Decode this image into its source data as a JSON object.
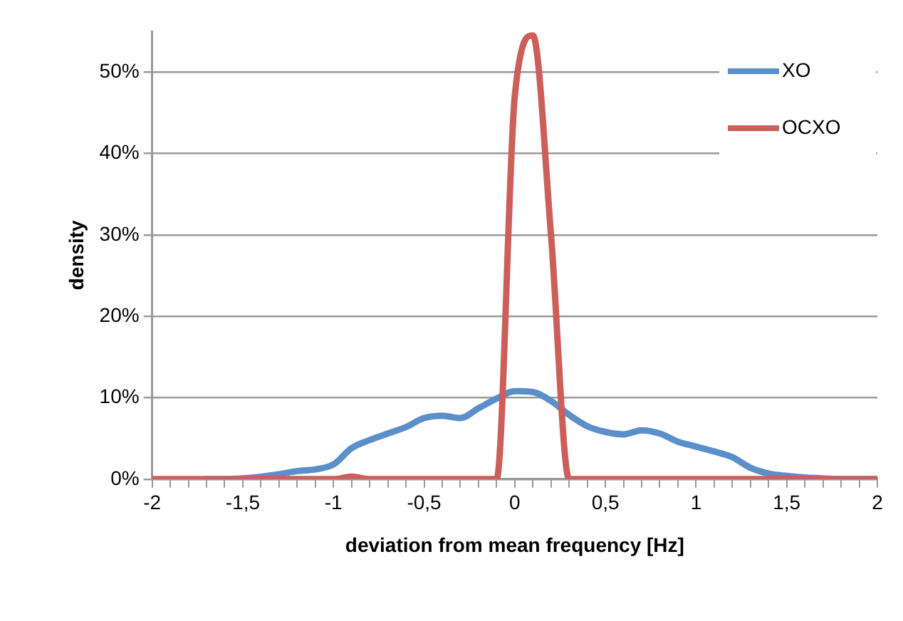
{
  "chart_data": {
    "type": "line",
    "xlabel": "deviation from mean frequency [Hz]",
    "ylabel": "density",
    "x": [
      -2,
      -1.9,
      -1.8,
      -1.7,
      -1.6,
      -1.5,
      -1.4,
      -1.3,
      -1.2,
      -1.1,
      -1,
      -0.9,
      -0.8,
      -0.7,
      -0.6,
      -0.5,
      -0.4,
      -0.3,
      -0.2,
      -0.1,
      0,
      0.1,
      0.2,
      0.3,
      0.4,
      0.5,
      0.6,
      0.7,
      0.8,
      0.9,
      1,
      1.1,
      1.2,
      1.3,
      1.4,
      1.5,
      1.6,
      1.7,
      1.8,
      1.9,
      2
    ],
    "series": [
      {
        "name": "XO",
        "color": "#5b8fc9",
        "values": [
          null,
          null,
          null,
          0,
          0,
          0.1,
          0.3,
          0.6,
          1.0,
          1.2,
          1.8,
          3.8,
          4.8,
          5.6,
          6.4,
          7.5,
          7.8,
          7.5,
          8.7,
          9.9,
          10.8,
          10.7,
          9.6,
          7.9,
          6.5,
          5.8,
          5.5,
          6.0,
          5.6,
          4.6,
          4.0,
          3.4,
          2.7,
          1.4,
          0.7,
          0.4,
          0.2,
          0.1,
          0,
          0,
          0
        ]
      },
      {
        "name": "OCXO",
        "color": "#cc5f5a",
        "values": [
          0,
          0,
          0,
          0,
          0,
          0,
          0,
          0,
          0,
          0,
          0,
          0.3,
          0,
          0,
          0,
          0,
          0,
          0,
          0,
          0,
          47,
          54.5,
          30,
          0,
          0,
          0,
          0,
          0,
          0,
          0,
          0,
          0,
          0,
          0,
          0,
          0,
          0,
          0,
          0,
          0,
          0
        ]
      }
    ],
    "xlim": [
      -2,
      2
    ],
    "xticks": [
      {
        "value": -2,
        "label": "-2"
      },
      {
        "value": -1.9,
        "label": null
      },
      {
        "value": -1.8,
        "label": null
      },
      {
        "value": -1.7,
        "label": null
      },
      {
        "value": -1.6,
        "label": null
      },
      {
        "value": -1.5,
        "label": "-1,5"
      },
      {
        "value": -1.4,
        "label": null
      },
      {
        "value": -1.3,
        "label": null
      },
      {
        "value": -1.2,
        "label": null
      },
      {
        "value": -1.1,
        "label": null
      },
      {
        "value": -1,
        "label": "-1"
      },
      {
        "value": -0.9,
        "label": null
      },
      {
        "value": -0.8,
        "label": null
      },
      {
        "value": -0.7,
        "label": null
      },
      {
        "value": -0.6,
        "label": null
      },
      {
        "value": -0.5,
        "label": "-0,5"
      },
      {
        "value": -0.4,
        "label": null
      },
      {
        "value": -0.3,
        "label": null
      },
      {
        "value": -0.2,
        "label": null
      },
      {
        "value": -0.1,
        "label": null
      },
      {
        "value": 0,
        "label": "0"
      },
      {
        "value": 0.1,
        "label": null
      },
      {
        "value": 0.2,
        "label": null
      },
      {
        "value": 0.3,
        "label": null
      },
      {
        "value": 0.4,
        "label": null
      },
      {
        "value": 0.5,
        "label": "0,5"
      },
      {
        "value": 0.6,
        "label": null
      },
      {
        "value": 0.7,
        "label": null
      },
      {
        "value": 0.8,
        "label": null
      },
      {
        "value": 0.9,
        "label": null
      },
      {
        "value": 1,
        "label": "1"
      },
      {
        "value": 1.1,
        "label": null
      },
      {
        "value": 1.2,
        "label": null
      },
      {
        "value": 1.3,
        "label": null
      },
      {
        "value": 1.4,
        "label": null
      },
      {
        "value": 1.5,
        "label": "1,5"
      },
      {
        "value": 1.6,
        "label": null
      },
      {
        "value": 1.7,
        "label": null
      },
      {
        "value": 1.8,
        "label": null
      },
      {
        "value": 1.9,
        "label": null
      },
      {
        "value": 2,
        "label": "2"
      }
    ],
    "ylim": [
      0,
      55
    ],
    "yticks": [
      {
        "value": 0,
        "label": "0%"
      },
      {
        "value": 10,
        "label": "10%"
      },
      {
        "value": 20,
        "label": "20%"
      },
      {
        "value": 30,
        "label": "30%"
      },
      {
        "value": 40,
        "label": "40%"
      },
      {
        "value": 50,
        "label": "50%"
      }
    ],
    "grid": "y",
    "legend": "top right",
    "marker": "none",
    "line_style": "solid"
  }
}
